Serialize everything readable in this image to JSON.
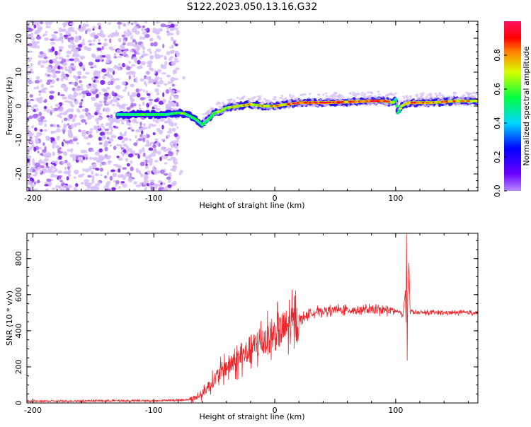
{
  "title": "S122.2023.050.13.16.G32",
  "colors": {
    "snr_line": "#e8262b",
    "track_low": "#2a0cf0",
    "track_mid": "#0fd8e6",
    "track_high": "#e8262b",
    "noise": "#7a2cf0"
  },
  "chart_data": [
    {
      "type": "heatmap",
      "xlabel": "Height of straight line (km)",
      "ylabel": "Frequency (Hz)",
      "xlim": [
        -205,
        168
      ],
      "ylim": [
        -25,
        25
      ],
      "x_ticks": [
        -200,
        -100,
        0,
        100
      ],
      "y_ticks": [
        -20,
        -10,
        0,
        10,
        20
      ],
      "colorbar": {
        "label": "Normalized spectral amplitude",
        "range": [
          0,
          1
        ],
        "ticks": [
          "0.0",
          "0.2",
          "0.4",
          "0.6",
          "0.8"
        ],
        "tick_values": [
          0,
          0.2,
          0.4,
          0.6,
          0.8
        ],
        "colormap": "rainbow (purple-blue-cyan-green-yellow-red-magenta)"
      },
      "noise_region": [
        -205,
        -80
      ],
      "track": {
        "x": [
          -130,
          -110,
          -90,
          -80,
          -75,
          -70,
          -65,
          -60,
          -55,
          -50,
          -45,
          -40,
          -30,
          -20,
          -10,
          0,
          10,
          20,
          40,
          60,
          80,
          90,
          98,
          100,
          102,
          105,
          110,
          130,
          150,
          168
        ],
        "freq": [
          -2.5,
          -2.5,
          -2.5,
          -2,
          -2.2,
          -3,
          -4,
          -5.5,
          -4,
          -2,
          -1.5,
          -0.5,
          0,
          0.5,
          0,
          0,
          0.5,
          1,
          1,
          1.2,
          1.5,
          1.5,
          1,
          2,
          -2,
          0,
          1,
          1,
          1.5,
          1.5
        ],
        "amplitude": [
          0.4,
          0.5,
          0.45,
          0.5,
          0.55,
          0.5,
          0.5,
          0.45,
          0.5,
          0.55,
          0.6,
          0.6,
          0.7,
          0.75,
          0.7,
          0.75,
          0.8,
          0.95,
          0.9,
          0.85,
          0.9,
          0.85,
          0.6,
          0.5,
          0.5,
          0.7,
          0.85,
          0.8,
          0.75,
          0.7
        ]
      }
    },
    {
      "type": "line",
      "xlabel": "Height of straight line (km)",
      "ylabel": "SNR (10 * v/v)",
      "xlim": [
        -205,
        168
      ],
      "ylim": [
        0,
        940
      ],
      "x_ticks": [
        -200,
        -100,
        0,
        100
      ],
      "y_ticks": [
        0,
        200,
        400,
        600,
        800
      ],
      "series": [
        {
          "x": [
            -205,
            -180,
            -150,
            -120,
            -100,
            -90,
            -80,
            -70,
            -65,
            -60,
            -55,
            -50,
            -45,
            -40,
            -35,
            -30,
            -25,
            -20,
            -15,
            -10,
            -5,
            0,
            5,
            10,
            15,
            20,
            25,
            30,
            40,
            50,
            60,
            70,
            80,
            90,
            100,
            104,
            106,
            108,
            108.5,
            109,
            109.5,
            110,
            111,
            112,
            113,
            116,
            130,
            150,
            168
          ],
          "y": [
            10,
            10,
            12,
            12,
            12,
            15,
            15,
            20,
            30,
            50,
            90,
            130,
            170,
            200,
            220,
            240,
            270,
            300,
            320,
            340,
            360,
            380,
            400,
            420,
            440,
            460,
            480,
            500,
            510,
            515,
            515,
            515,
            515,
            515,
            510,
            500,
            480,
            620,
            450,
            940,
            230,
            600,
            780,
            500,
            510,
            500,
            500,
            500,
            500
          ]
        }
      ]
    }
  ]
}
